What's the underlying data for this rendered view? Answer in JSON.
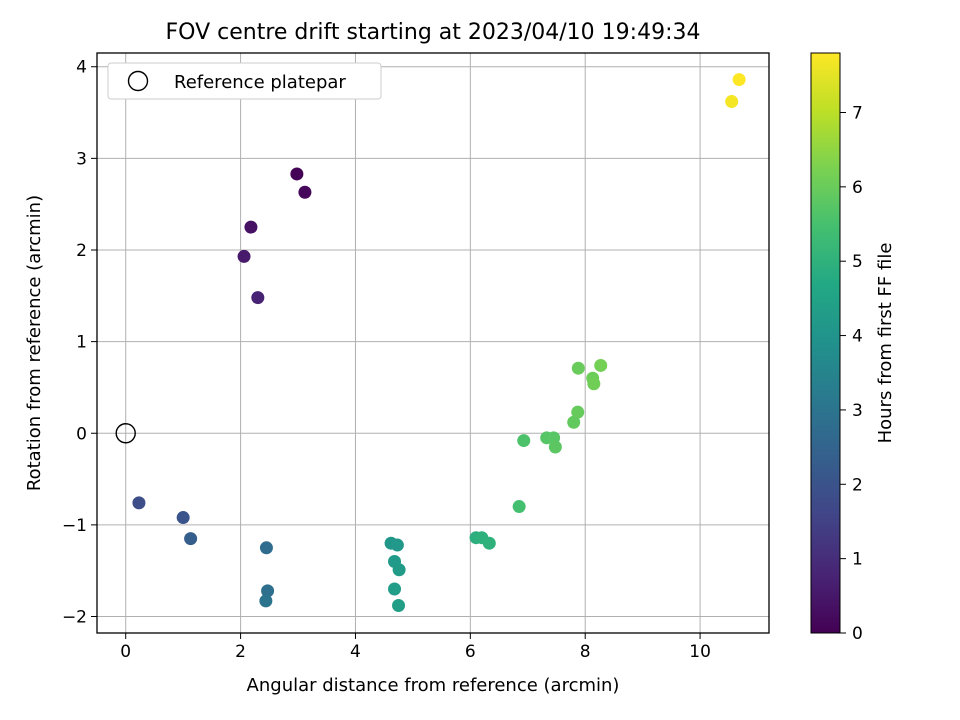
{
  "chart_data": {
    "type": "scatter",
    "title": "FOV centre drift starting at 2023/04/10 19:49:34",
    "xlabel": "Angular distance from reference (arcmin)",
    "ylabel": "Rotation from reference (arcmin)",
    "xlim": [
      -0.5,
      11.2
    ],
    "ylim": [
      -2.18,
      4.15
    ],
    "xticks": [
      0,
      2,
      4,
      6,
      8,
      10
    ],
    "yticks": [
      -2,
      -1,
      0,
      1,
      2,
      3,
      4
    ],
    "grid": true,
    "legend": {
      "position": "top-left",
      "entries": [
        "Reference platepar"
      ]
    },
    "reference_point": {
      "x": 0,
      "y": 0,
      "label": "Reference platepar"
    },
    "colorbar": {
      "label": "Hours from first FF file",
      "colormap": "viridis",
      "range": [
        0,
        7.8
      ],
      "ticks": [
        0,
        1,
        2,
        3,
        4,
        5,
        6,
        7
      ]
    },
    "points": [
      {
        "x": 2.98,
        "y": 2.83,
        "c": 0.05
      },
      {
        "x": 3.12,
        "y": 2.63,
        "c": 0.15
      },
      {
        "x": 2.18,
        "y": 2.25,
        "c": 0.35
      },
      {
        "x": 2.06,
        "y": 1.93,
        "c": 0.55
      },
      {
        "x": 2.3,
        "y": 1.48,
        "c": 0.75
      },
      {
        "x": 0.23,
        "y": -0.76,
        "c": 1.85
      },
      {
        "x": 1.0,
        "y": -0.92,
        "c": 2.05
      },
      {
        "x": 1.13,
        "y": -1.15,
        "c": 2.3
      },
      {
        "x": 2.45,
        "y": -1.25,
        "c": 2.75
      },
      {
        "x": 2.47,
        "y": -1.72,
        "c": 2.85
      },
      {
        "x": 2.44,
        "y": -1.83,
        "c": 2.95
      },
      {
        "x": 4.62,
        "y": -1.2,
        "c": 4.1
      },
      {
        "x": 4.73,
        "y": -1.22,
        "c": 4.15
      },
      {
        "x": 4.68,
        "y": -1.4,
        "c": 4.2
      },
      {
        "x": 4.76,
        "y": -1.49,
        "c": 4.25
      },
      {
        "x": 4.68,
        "y": -1.7,
        "c": 4.3
      },
      {
        "x": 4.75,
        "y": -1.88,
        "c": 4.35
      },
      {
        "x": 6.1,
        "y": -1.14,
        "c": 4.9
      },
      {
        "x": 6.2,
        "y": -1.14,
        "c": 4.95
      },
      {
        "x": 6.33,
        "y": -1.2,
        "c": 5.0
      },
      {
        "x": 6.85,
        "y": -0.8,
        "c": 5.45
      },
      {
        "x": 6.93,
        "y": -0.08,
        "c": 5.6
      },
      {
        "x": 7.33,
        "y": -0.05,
        "c": 5.7
      },
      {
        "x": 7.45,
        "y": -0.05,
        "c": 5.75
      },
      {
        "x": 7.48,
        "y": -0.15,
        "c": 5.8
      },
      {
        "x": 7.8,
        "y": 0.12,
        "c": 5.9
      },
      {
        "x": 7.87,
        "y": 0.23,
        "c": 5.95
      },
      {
        "x": 7.88,
        "y": 0.71,
        "c": 6.0
      },
      {
        "x": 8.13,
        "y": 0.6,
        "c": 6.05
      },
      {
        "x": 8.15,
        "y": 0.54,
        "c": 6.1
      },
      {
        "x": 8.27,
        "y": 0.74,
        "c": 6.15
      },
      {
        "x": 10.55,
        "y": 3.62,
        "c": 7.7
      },
      {
        "x": 10.68,
        "y": 3.86,
        "c": 7.8
      }
    ]
  }
}
